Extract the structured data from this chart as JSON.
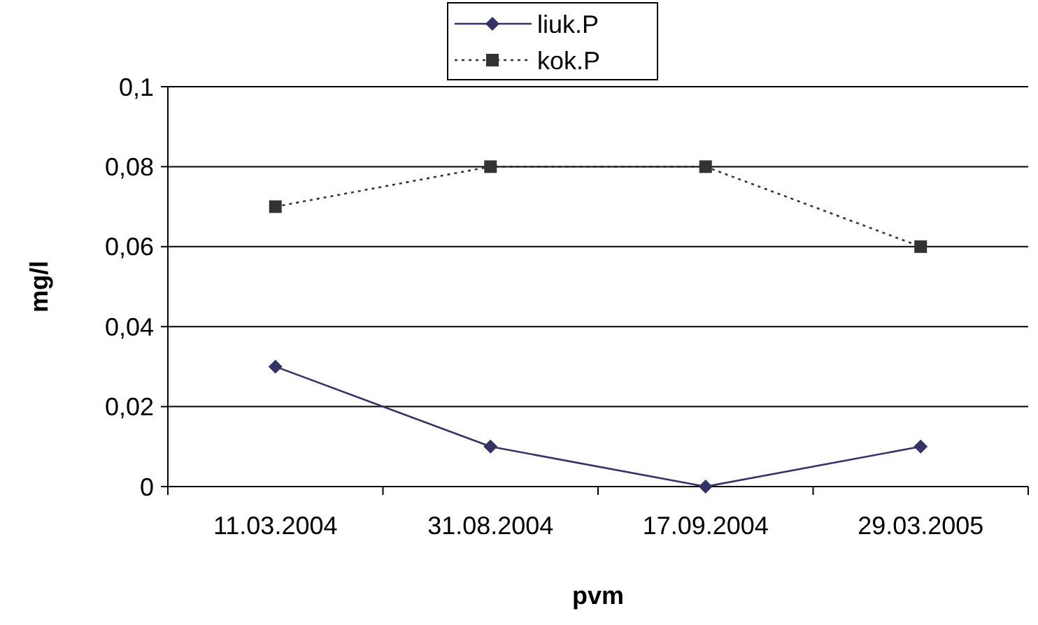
{
  "chart_data": {
    "type": "line",
    "xlabel": "pvm",
    "ylabel": "mg/l",
    "categories": [
      "11.03.2004",
      "31.08.2004",
      "17.09.2004",
      "29.03.2005"
    ],
    "series": [
      {
        "name": "liuk.P",
        "color": "#333366",
        "values": [
          0.03,
          0.01,
          0,
          0.01
        ],
        "marker": "diamond",
        "line_style": "solid"
      },
      {
        "name": "kok.P",
        "color": "#333333",
        "values": [
          0.07,
          0.08,
          0.08,
          0.06
        ],
        "marker": "square",
        "line_style": "dotted"
      }
    ],
    "ylim": [
      0,
      0.1
    ],
    "yticks": [
      {
        "value": 0,
        "label": "0"
      },
      {
        "value": 0.02,
        "label": "0,02"
      },
      {
        "value": 0.04,
        "label": "0,04"
      },
      {
        "value": 0.06,
        "label": "0,06"
      },
      {
        "value": 0.08,
        "label": "0,08"
      },
      {
        "value": 0.1,
        "label": "0,1"
      }
    ],
    "grid": "y",
    "legend": "top"
  }
}
